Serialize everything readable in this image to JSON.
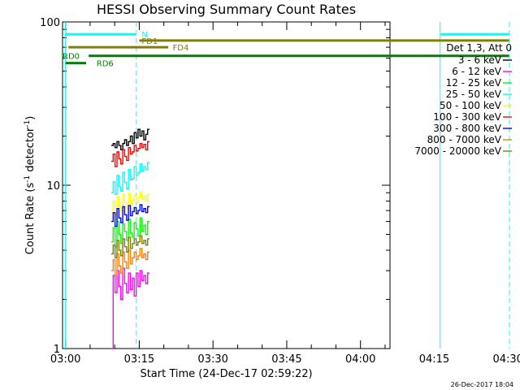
{
  "chart_data": {
    "type": "line",
    "title": "HESSI Observing Summary Count Rates",
    "xlabel": "Start Time (24-Dec-17 02:59:22)",
    "ylabel_parts": [
      "Count Rate (s",
      "-1",
      " detector",
      "-1",
      ")"
    ],
    "y_scale": "log",
    "ylim": [
      1,
      100
    ],
    "y_tick_labels": [
      {
        "value": 1,
        "label": "1"
      },
      {
        "value": 10,
        "label": "10"
      },
      {
        "value": 100,
        "label": "100"
      }
    ],
    "x_unit": "minutes since 03:00",
    "xlim": [
      -0.6,
      66
    ],
    "x_tick_labels": [
      {
        "t": 0,
        "label": "03:00"
      },
      {
        "t": 15,
        "label": "03:15"
      },
      {
        "t": 30,
        "label": "03:30"
      },
      {
        "t": 45,
        "label": "03:45"
      },
      {
        "t": 60,
        "label": "04:00"
      },
      {
        "t": 75,
        "label": "04:15"
      },
      {
        "t": 90,
        "label": "04:30"
      }
    ],
    "footer_timestamp": "26-Dec-2017 18:04",
    "legend_header": "Det 1,3, Att 0",
    "series": [
      {
        "name": "3 - 6 keV",
        "color": "#000000",
        "t_start": 9.3,
        "t_end": 17.1,
        "values": [
          17.5,
          18.0,
          17.0,
          18.5,
          17.5,
          16.5,
          18.0,
          19.0,
          17.5,
          18.5,
          20.0,
          18.0,
          21.0,
          19.5,
          22.0,
          20.0,
          21.5,
          19.0,
          20.5,
          22.0
        ]
      },
      {
        "name": "6 - 12 keV",
        "color": "#ff00ff",
        "t_start": 9.3,
        "t_end": 17.1,
        "values": [
          1.0,
          2.8,
          2.2,
          3.0,
          2.4,
          2.0,
          3.1,
          2.5,
          2.2,
          2.9,
          2.3,
          2.7,
          2.1,
          2.9,
          2.4,
          3.0,
          2.6,
          2.8,
          2.5,
          2.9
        ]
      },
      {
        "name": "12 - 25 keV",
        "color": "#00ff00",
        "t_start": 9.3,
        "t_end": 17.1,
        "values": [
          4.5,
          5.5,
          4.2,
          6.0,
          5.0,
          4.4,
          5.8,
          5.2,
          4.6,
          6.2,
          5.1,
          4.8,
          5.9,
          5.4,
          4.9,
          6.3,
          5.2,
          5.7,
          5.0,
          6.0
        ]
      },
      {
        "name": "25 - 50 keV",
        "color": "#00ffff",
        "t_start": 9.3,
        "t_end": 17.1,
        "values": [
          9.0,
          10.5,
          8.8,
          11.5,
          9.8,
          9.2,
          12.0,
          10.4,
          9.5,
          12.5,
          10.8,
          11.0,
          13.0,
          11.5,
          12.0,
          13.5,
          12.2,
          13.0,
          12.5,
          13.8
        ]
      },
      {
        "name": "50 - 100 keV",
        "color": "#ffff00",
        "t_start": 9.3,
        "t_end": 17.1,
        "values": [
          7.0,
          8.0,
          6.6,
          8.5,
          7.4,
          6.9,
          8.8,
          7.8,
          7.2,
          8.9,
          7.6,
          8.1,
          8.7,
          7.9,
          8.4,
          9.0,
          8.2,
          8.6,
          8.0,
          8.8
        ]
      },
      {
        "name": "100 - 300 keV",
        "color": "#ff0000",
        "t_start": 9.3,
        "t_end": 17.1,
        "values": [
          14.0,
          15.5,
          13.0,
          16.0,
          14.5,
          13.5,
          16.5,
          15.0,
          14.2,
          17.0,
          15.5,
          16.0,
          17.5,
          16.2,
          16.8,
          18.0,
          17.0,
          17.8,
          16.5,
          18.5
        ]
      },
      {
        "name": "300 - 800 keV",
        "color": "#0000ff",
        "t_start": 9.3,
        "t_end": 17.1,
        "values": [
          6.0,
          6.8,
          5.6,
          7.2,
          6.3,
          5.9,
          7.4,
          6.6,
          6.1,
          7.5,
          6.5,
          6.9,
          7.3,
          6.7,
          7.0,
          7.6,
          6.9,
          7.2,
          6.8,
          7.4
        ]
      },
      {
        "name": "800 - 7000 keV",
        "color": "#ff8000",
        "t_start": 9.3,
        "t_end": 17.1,
        "values": [
          3.0,
          3.5,
          2.8,
          3.8,
          3.2,
          2.9,
          3.9,
          3.4,
          3.1,
          4.0,
          3.3,
          3.6,
          3.9,
          3.5,
          3.7,
          4.1,
          3.6,
          3.8,
          3.5,
          3.9
        ]
      },
      {
        "name": "7000 - 20000 keV",
        "color": "#808000",
        "t_start": 9.3,
        "t_end": 17.1,
        "values": [
          3.8,
          4.3,
          3.6,
          4.6,
          4.0,
          3.7,
          4.7,
          4.2,
          3.9,
          4.8,
          4.1,
          4.4,
          4.7,
          4.3,
          4.5,
          4.9,
          4.4,
          4.6,
          4.3,
          4.7
        ]
      }
    ],
    "flag_bars": [
      {
        "label": "N",
        "color": "#00ffff",
        "y": 84,
        "segments": [
          [
            0,
            14.3
          ],
          [
            76.3,
            90.2
          ]
        ],
        "label_t": 15.5
      },
      {
        "label": "FD1",
        "color": "#808000",
        "y": 77,
        "segments": [
          [
            15.0,
            90.2
          ]
        ],
        "label_t": 15.5
      },
      {
        "label": "FD4",
        "color": "#808000",
        "y": 70,
        "segments": [
          [
            0.6,
            20.9
          ]
        ],
        "label_t": 21.8
      },
      {
        "label": "RD0",
        "color": "#008000",
        "y": 62,
        "segments": [
          [
            4.7,
            90.2
          ]
        ],
        "label_t": -0.6
      },
      {
        "label": "RD6",
        "color": "#008000",
        "y": 56,
        "segments": [
          [
            0,
            4.2
          ]
        ],
        "label_t": 6.3
      }
    ],
    "vlines": [
      {
        "t": 0,
        "color": "#00ffff",
        "dashed": false
      },
      {
        "t": 14.4,
        "color": "#00ffff",
        "dashed": true
      },
      {
        "t": 76.2,
        "color": "#00ffff",
        "dashed": false
      },
      {
        "t": 90.3,
        "color": "#00ffff",
        "dashed": true
      }
    ],
    "grid": false,
    "legend_position": "right"
  }
}
